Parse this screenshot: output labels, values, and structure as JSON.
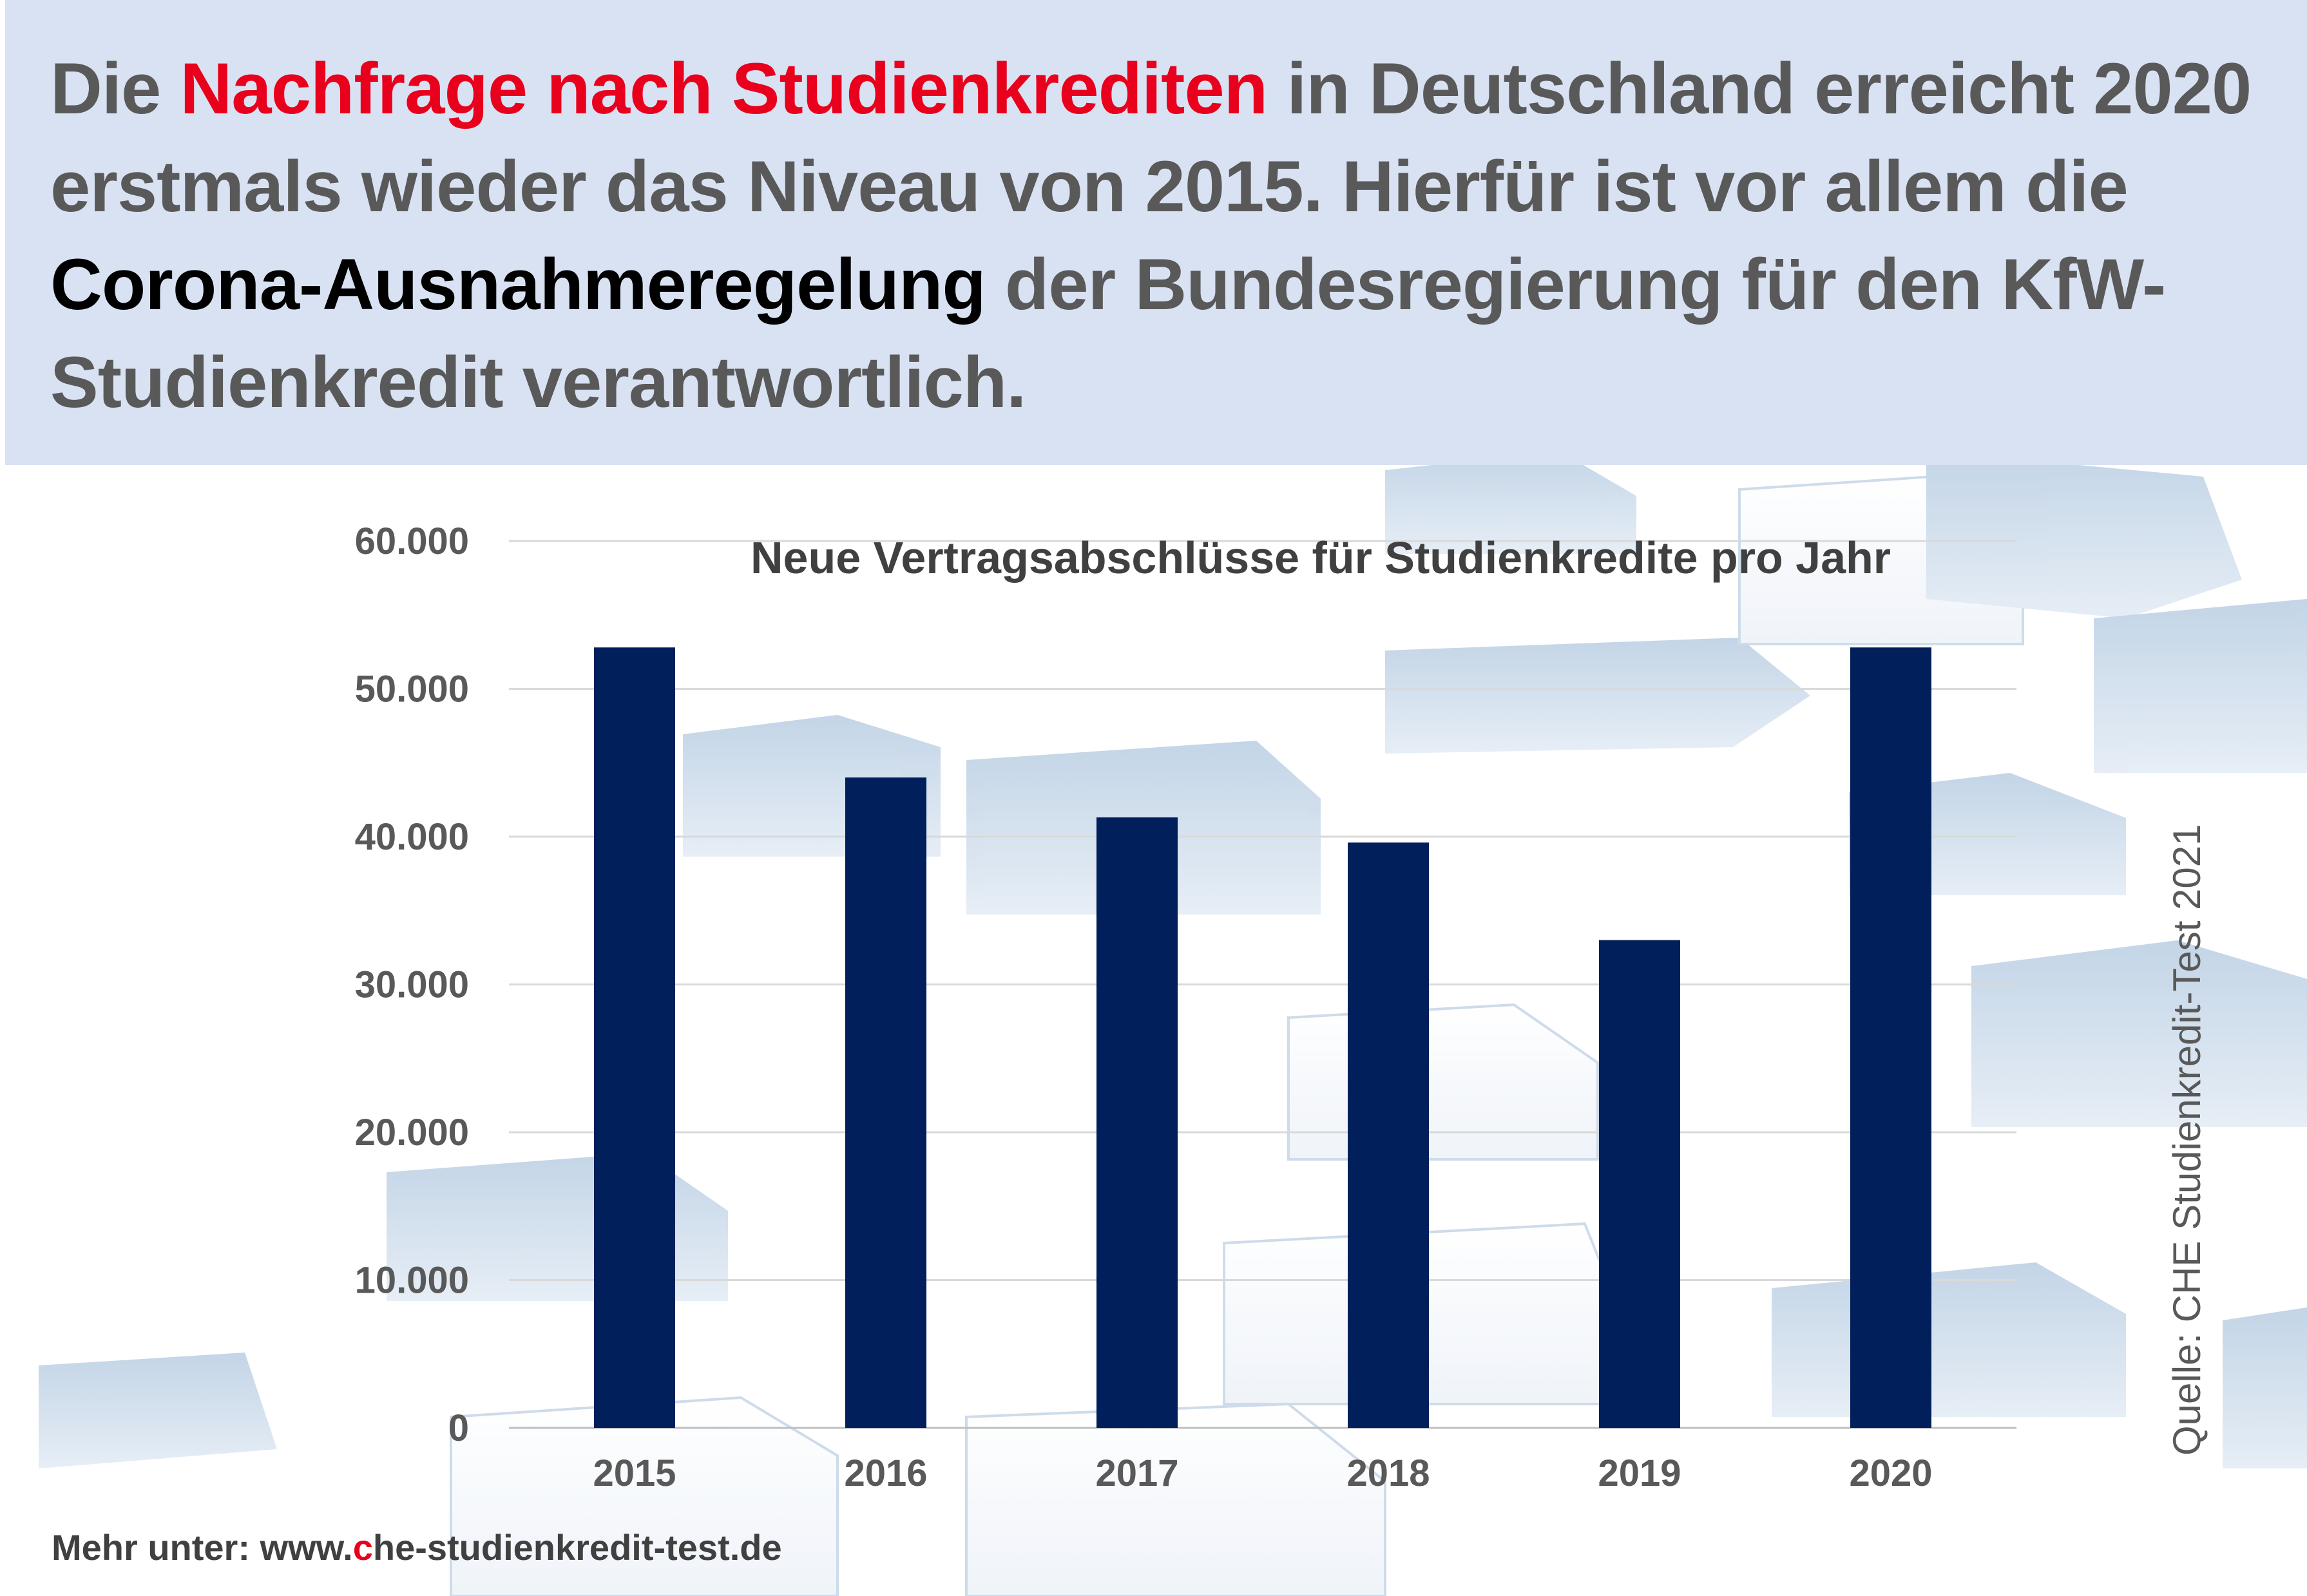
{
  "headline": {
    "part1": "Die ",
    "red": "Nachfrage nach Studienkrediten",
    "part2": " in Deutschland erreicht 2020 erstmals wieder das Niveau von 2015. Hierfür ist vor allem die ",
    "black": "Corona-Ausnahmeregelung",
    "part3": " der Bundesregierung für den KfW-Studienkredit verantwortlich."
  },
  "chart_data": {
    "type": "bar",
    "title": "Neue Vertragsabschlüsse für Studienkredite pro Jahr",
    "categories": [
      "2015",
      "2016",
      "2017",
      "2018",
      "2019",
      "2020"
    ],
    "values": [
      52800,
      44000,
      41300,
      39600,
      33000,
      52800
    ],
    "ylim": [
      0,
      60000
    ],
    "yticks": [
      0,
      10000,
      20000,
      30000,
      40000,
      50000,
      60000
    ],
    "ytick_labels": [
      "0",
      "10.000",
      "20.000",
      "30.000",
      "40.000",
      "50.000",
      "60.000"
    ],
    "grid": true,
    "bar_color": "#001f5b"
  },
  "source": "Quelle: CHE Studienkredit-Test 2021",
  "footer": {
    "prefix": "Mehr unter: www.",
    "c": "c",
    "rest": "he-studienkredit-test.de"
  },
  "colors": {
    "header_bg": "#d9e2f3",
    "accent_red": "#e8001c",
    "bar": "#001f5b",
    "text_gray": "#595959"
  }
}
